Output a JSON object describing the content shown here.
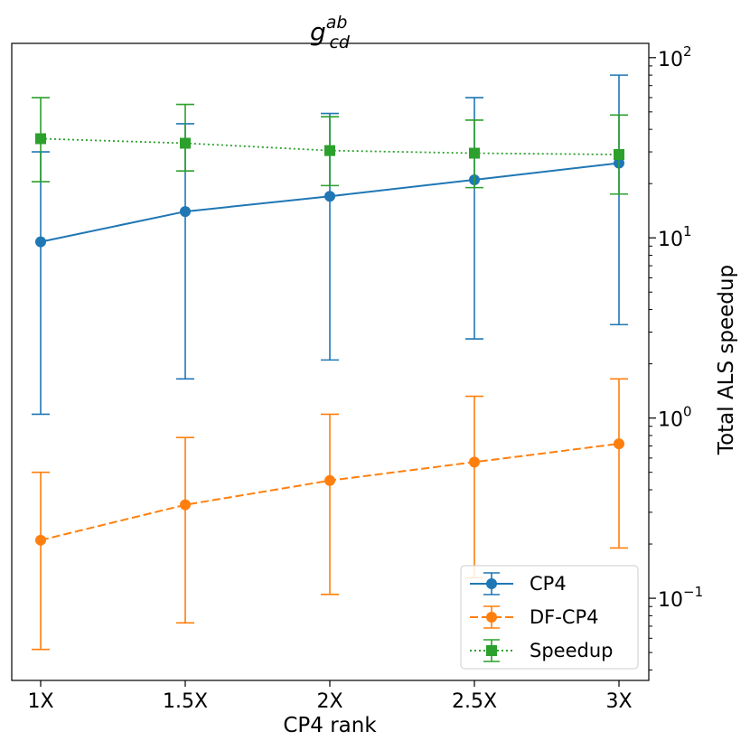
{
  "chart_data": {
    "type": "line",
    "title": {
      "base": "g",
      "sup": "ab",
      "sub": "cd"
    },
    "xlabel": "CP4 rank",
    "ylabel": "Total ALS speedup",
    "categories": [
      "1X",
      "1.5X",
      "2X",
      "2.5X",
      "3X"
    ],
    "y_scale": "log",
    "ylim": [
      0.035,
      120
    ],
    "y_ticks": [
      {
        "value": 100,
        "base": "10",
        "exp": "2"
      },
      {
        "value": 10,
        "base": "10",
        "exp": "1"
      },
      {
        "value": 1,
        "base": "10",
        "exp": "0"
      },
      {
        "value": 0.1,
        "base": "10",
        "exp": "−1"
      }
    ],
    "grid": false,
    "legend_position": "lower-right",
    "series": [
      {
        "name": "CP4",
        "color": "#1f77b4",
        "line_style": "solid",
        "marker": "circle",
        "values": [
          9.5,
          14,
          17,
          21,
          26
        ],
        "err_low": [
          1.05,
          1.65,
          2.1,
          2.75,
          3.3
        ],
        "err_high": [
          30,
          43,
          49,
          60,
          80
        ]
      },
      {
        "name": "DF-CP4",
        "color": "#ff7f0e",
        "line_style": "dashed",
        "marker": "circle",
        "values": [
          0.21,
          0.33,
          0.45,
          0.57,
          0.72
        ],
        "err_low": [
          0.052,
          0.073,
          0.105,
          0.13,
          0.19
        ],
        "err_high": [
          0.5,
          0.78,
          1.05,
          1.32,
          1.65
        ]
      },
      {
        "name": "Speedup",
        "color": "#2ca02c",
        "line_style": "dotted",
        "marker": "square",
        "values": [
          35.5,
          33.5,
          30.5,
          29.5,
          29
        ],
        "err_low": [
          20.5,
          23.5,
          19.5,
          19,
          17.5
        ],
        "err_high": [
          60,
          55,
          47,
          45,
          48
        ]
      }
    ]
  }
}
